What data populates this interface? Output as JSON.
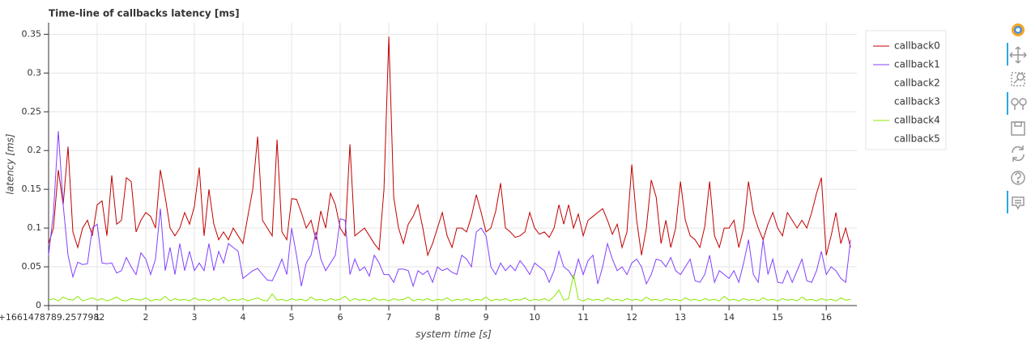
{
  "chart_data": {
    "type": "line",
    "title": "Time-line of callbacks latency [ms]",
    "x_label": "system time [s]",
    "y_label": "latency [ms]",
    "xlim": [
      0,
      16.63
    ],
    "ylim": [
      0,
      0.365
    ],
    "xticks": [
      {
        "value": 0,
        "label": "0+1661478789.2577982"
      },
      1,
      2,
      3,
      4,
      5,
      6,
      7,
      8,
      9,
      10,
      11,
      12,
      13,
      14,
      15,
      16
    ],
    "yticks": [
      0,
      0.05,
      0.1,
      0.15,
      0.2,
      0.25,
      0.3,
      0.35
    ],
    "grid": true,
    "legend": "right",
    "x": [
      0,
      0.1,
      0.2,
      0.3,
      0.4,
      0.5,
      0.6,
      0.7,
      0.8,
      0.9,
      1,
      1.1,
      1.2,
      1.3,
      1.4,
      1.5,
      1.6,
      1.7,
      1.8,
      1.9,
      2,
      2.1,
      2.2,
      2.3,
      2.4,
      2.5,
      2.6,
      2.7,
      2.8,
      2.9,
      3,
      3.1,
      3.2,
      3.3,
      3.4,
      3.5,
      3.6,
      3.7,
      3.8,
      3.9,
      4,
      4.1,
      4.2,
      4.3,
      4.4,
      4.5,
      4.6,
      4.7,
      4.8,
      4.9,
      5,
      5.1,
      5.2,
      5.3,
      5.4,
      5.5,
      5.6,
      5.7,
      5.8,
      5.9,
      6,
      6.1,
      6.2,
      6.3,
      6.4,
      6.5,
      6.6,
      6.7,
      6.8,
      6.9,
      7,
      7.1,
      7.2,
      7.3,
      7.4,
      7.5,
      7.6,
      7.7,
      7.8,
      7.9,
      8,
      8.1,
      8.2,
      8.3,
      8.4,
      8.5,
      8.6,
      8.7,
      8.8,
      8.9,
      9,
      9.1,
      9.2,
      9.3,
      9.4,
      9.5,
      9.6,
      9.7,
      9.8,
      9.9,
      10,
      10.1,
      10.2,
      10.3,
      10.4,
      10.5,
      10.6,
      10.7,
      10.8,
      10.9,
      11,
      11.1,
      11.2,
      11.3,
      11.4,
      11.5,
      11.6,
      11.7,
      11.8,
      11.9,
      12,
      12.1,
      12.2,
      12.3,
      12.4,
      12.5,
      12.6,
      12.7,
      12.8,
      12.9,
      13,
      13.1,
      13.2,
      13.3,
      13.4,
      13.5,
      13.6,
      13.7,
      13.8,
      13.9,
      14,
      14.1,
      14.2,
      14.3,
      14.4,
      14.5,
      14.6,
      14.7,
      14.8,
      14.9,
      15,
      15.1,
      15.2,
      15.3,
      15.4,
      15.5,
      15.6,
      15.7,
      15.8,
      15.9,
      16,
      16.1,
      16.2,
      16.3,
      16.4,
      16.5
    ],
    "series": [
      {
        "name": "callback0",
        "color": "#c00000",
        "values": [
          0.08,
          0.1,
          0.175,
          0.13,
          0.205,
          0.095,
          0.075,
          0.1,
          0.11,
          0.09,
          0.13,
          0.135,
          0.09,
          0.168,
          0.105,
          0.11,
          0.165,
          0.16,
          0.095,
          0.11,
          0.12,
          0.115,
          0.1,
          0.175,
          0.14,
          0.1,
          0.09,
          0.1,
          0.12,
          0.105,
          0.128,
          0.178,
          0.09,
          0.15,
          0.105,
          0.085,
          0.095,
          0.085,
          0.1,
          0.09,
          0.08,
          0.115,
          0.15,
          0.218,
          0.11,
          0.1,
          0.09,
          0.214,
          0.095,
          0.085,
          0.138,
          0.137,
          0.12,
          0.1,
          0.11,
          0.085,
          0.122,
          0.1,
          0.145,
          0.13,
          0.1,
          0.09,
          0.208,
          0.09,
          0.095,
          0.1,
          0.09,
          0.08,
          0.072,
          0.15,
          0.347,
          0.14,
          0.1,
          0.08,
          0.105,
          0.115,
          0.13,
          0.1,
          0.065,
          0.08,
          0.1,
          0.12,
          0.09,
          0.075,
          0.1,
          0.1,
          0.095,
          0.115,
          0.143,
          0.12,
          0.095,
          0.1,
          0.122,
          0.158,
          0.1,
          0.095,
          0.088,
          0.09,
          0.095,
          0.12,
          0.1,
          0.092,
          0.095,
          0.088,
          0.1,
          0.13,
          0.105,
          0.13,
          0.1,
          0.118,
          0.09,
          0.11,
          0.115,
          0.12,
          0.125,
          0.11,
          0.092,
          0.105,
          0.075,
          0.095,
          0.182,
          0.11,
          0.065,
          0.1,
          0.162,
          0.14,
          0.08,
          0.11,
          0.075,
          0.1,
          0.16,
          0.11,
          0.09,
          0.085,
          0.075,
          0.102,
          0.16,
          0.09,
          0.075,
          0.1,
          0.1,
          0.11,
          0.075,
          0.1,
          0.16,
          0.12,
          0.1,
          0.085,
          0.105,
          0.12,
          0.1,
          0.09,
          0.12,
          0.11,
          0.1,
          0.11,
          0.1,
          0.12,
          0.145,
          0.165,
          0.065,
          0.09,
          0.12,
          0.08,
          0.1,
          0.075
        ]
      },
      {
        "name": "callback1",
        "color": "#8040ff",
        "values": [
          0.065,
          0.12,
          0.225,
          0.13,
          0.065,
          0.037,
          0.056,
          0.053,
          0.054,
          0.1,
          0.105,
          0.055,
          0.054,
          0.055,
          0.042,
          0.045,
          0.062,
          0.05,
          0.04,
          0.068,
          0.06,
          0.04,
          0.06,
          0.125,
          0.045,
          0.075,
          0.04,
          0.08,
          0.045,
          0.07,
          0.045,
          0.055,
          0.045,
          0.08,
          0.045,
          0.07,
          0.055,
          0.08,
          0.075,
          0.07,
          0.035,
          0.04,
          0.045,
          0.048,
          0.04,
          0.033,
          0.032,
          0.045,
          0.06,
          0.04,
          0.1,
          0.065,
          0.025,
          0.055,
          0.065,
          0.095,
          0.06,
          0.045,
          0.055,
          0.065,
          0.112,
          0.11,
          0.04,
          0.06,
          0.045,
          0.05,
          0.038,
          0.065,
          0.055,
          0.04,
          0.04,
          0.03,
          0.047,
          0.047,
          0.045,
          0.025,
          0.045,
          0.04,
          0.045,
          0.03,
          0.05,
          0.045,
          0.048,
          0.043,
          0.04,
          0.065,
          0.06,
          0.05,
          0.095,
          0.1,
          0.09,
          0.05,
          0.04,
          0.055,
          0.045,
          0.052,
          0.045,
          0.058,
          0.05,
          0.04,
          0.055,
          0.05,
          0.045,
          0.03,
          0.045,
          0.07,
          0.05,
          0.045,
          0.035,
          0.06,
          0.04,
          0.058,
          0.065,
          0.028,
          0.05,
          0.08,
          0.06,
          0.045,
          0.05,
          0.04,
          0.055,
          0.06,
          0.05,
          0.028,
          0.04,
          0.06,
          0.058,
          0.05,
          0.062,
          0.045,
          0.04,
          0.05,
          0.06,
          0.032,
          0.03,
          0.04,
          0.065,
          0.03,
          0.045,
          0.04,
          0.035,
          0.045,
          0.03,
          0.055,
          0.085,
          0.04,
          0.03,
          0.085,
          0.04,
          0.06,
          0.03,
          0.029,
          0.045,
          0.03,
          0.045,
          0.06,
          0.032,
          0.03,
          0.045,
          0.07,
          0.04,
          0.05,
          0.045,
          0.035,
          0.03,
          0.085
        ]
      },
      {
        "name": "callback2"
      },
      {
        "name": "callback3"
      },
      {
        "name": "callback4",
        "color": "#88e800",
        "values": [
          0.007,
          0.009,
          0.006,
          0.011,
          0.008,
          0.007,
          0.012,
          0.006,
          0.008,
          0.01,
          0.007,
          0.009,
          0.006,
          0.008,
          0.011,
          0.007,
          0.006,
          0.009,
          0.008,
          0.007,
          0.01,
          0.006,
          0.008,
          0.007,
          0.012,
          0.006,
          0.009,
          0.007,
          0.008,
          0.006,
          0.01,
          0.007,
          0.008,
          0.006,
          0.009,
          0.007,
          0.011,
          0.006,
          0.008,
          0.007,
          0.009,
          0.006,
          0.008,
          0.01,
          0.007,
          0.006,
          0.015,
          0.007,
          0.008,
          0.006,
          0.009,
          0.007,
          0.008,
          0.006,
          0.011,
          0.007,
          0.008,
          0.006,
          0.009,
          0.007,
          0.008,
          0.012,
          0.006,
          0.009,
          0.007,
          0.008,
          0.006,
          0.01,
          0.007,
          0.008,
          0.006,
          0.009,
          0.007,
          0.008,
          0.011,
          0.006,
          0.008,
          0.007,
          0.009,
          0.006,
          0.008,
          0.007,
          0.01,
          0.006,
          0.008,
          0.007,
          0.009,
          0.006,
          0.008,
          0.007,
          0.011,
          0.006,
          0.008,
          0.007,
          0.009,
          0.006,
          0.008,
          0.007,
          0.01,
          0.006,
          0.008,
          0.007,
          0.009,
          0.006,
          0.012,
          0.02,
          0.007,
          0.009,
          0.04,
          0.008,
          0.006,
          0.009,
          0.007,
          0.008,
          0.006,
          0.01,
          0.007,
          0.008,
          0.006,
          0.009,
          0.007,
          0.008,
          0.006,
          0.011,
          0.007,
          0.008,
          0.006,
          0.009,
          0.007,
          0.008,
          0.006,
          0.01,
          0.007,
          0.008,
          0.006,
          0.009,
          0.007,
          0.008,
          0.006,
          0.012,
          0.007,
          0.008,
          0.006,
          0.009,
          0.007,
          0.008,
          0.006,
          0.01,
          0.007,
          0.008,
          0.006,
          0.009,
          0.007,
          0.008,
          0.006,
          0.011,
          0.007,
          0.008,
          0.006,
          0.009,
          0.007,
          0.008,
          0.006,
          0.01,
          0.007,
          0.008
        ]
      },
      {
        "name": "callback5"
      }
    ]
  }
}
